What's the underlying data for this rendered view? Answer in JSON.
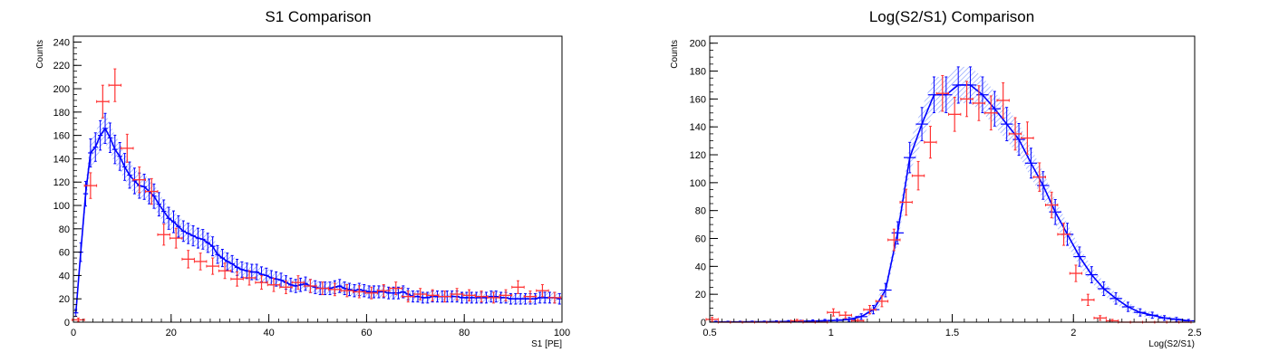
{
  "chart_data": [
    {
      "type": "line",
      "title": "S1 Comparison",
      "xlabel": "S1 [PE]",
      "ylabel": "Counts",
      "xlim": [
        0,
        100
      ],
      "ylim": [
        0,
        245
      ],
      "x_ticks": [
        0,
        20,
        40,
        60,
        80,
        100
      ],
      "y_ticks": [
        0,
        20,
        40,
        60,
        80,
        100,
        120,
        140,
        160,
        180,
        200,
        220,
        240
      ],
      "x_tick_labels": [
        "0",
        "20",
        "40",
        "60",
        "80",
        "100"
      ],
      "y_tick_labels": [
        "0",
        "20",
        "40",
        "60",
        "80",
        "100",
        "120",
        "140",
        "160",
        "180",
        "200",
        "220",
        "240"
      ],
      "grid": false,
      "legend": "none",
      "series": [
        {
          "role": "data-points",
          "color": "#ff3333",
          "x": [
            1,
            3.5,
            6,
            8.5,
            11,
            13.5,
            16,
            18.5,
            21,
            23.5,
            26,
            28.5,
            31,
            33.5,
            36,
            38.5,
            41,
            43.5,
            46,
            48.5,
            51,
            53.5,
            56,
            58.5,
            61,
            63.5,
            66,
            68.5,
            71,
            73.5,
            76,
            78.5,
            81,
            83.5,
            86,
            88.5,
            91,
            93.5,
            96,
            98.5
          ],
          "y": [
            2,
            117,
            189,
            203,
            149,
            122,
            112,
            75,
            72,
            54,
            52,
            48,
            44,
            37,
            38,
            34,
            32,
            30,
            34,
            31,
            29,
            28,
            27,
            26,
            25,
            27,
            29,
            22,
            24,
            23,
            22,
            24,
            23,
            22,
            21,
            23,
            30,
            22,
            27,
            21
          ],
          "yerr": [
            1.5,
            11,
            14,
            14,
            12,
            11,
            11,
            9,
            8.5,
            7.5,
            7.2,
            7,
            6.6,
            6.1,
            6.2,
            5.8,
            5.7,
            5.5,
            5.8,
            5.6,
            5.4,
            5.3,
            5.2,
            5.1,
            5,
            5.2,
            5.4,
            4.7,
            4.9,
            4.8,
            4.7,
            4.9,
            4.8,
            4.7,
            4.6,
            4.8,
            5.5,
            4.7,
            5.2,
            4.6
          ]
        },
        {
          "role": "model-points",
          "color": "#0000ff",
          "x": [
            0.5,
            1.5,
            2.5,
            3.5,
            4.5,
            5.5,
            6.5,
            7.5,
            8.5,
            9.5,
            10.5,
            11.5,
            12.5,
            13.5,
            14.5,
            15.5,
            16.5,
            17.5,
            18.5,
            19.5,
            20.5,
            21.5,
            22.5,
            23.5,
            24.5,
            25.5,
            26.5,
            27.5,
            28.5,
            29.5,
            30.5,
            31.5,
            32.5,
            33.5,
            34.5,
            35.5,
            36.5,
            37.5,
            38.5,
            39.5,
            40.5,
            41.5,
            42.5,
            43.5,
            44.5,
            45.5,
            46.5,
            47.5,
            48.5,
            49.5,
            50.5,
            51.5,
            52.5,
            53.5,
            54.5,
            55.5,
            56.5,
            57.5,
            58.5,
            59.5,
            60.5,
            61.5,
            62.5,
            63.5,
            64.5,
            65.5,
            66.5,
            67.5,
            68.5,
            69.5,
            70.5,
            71.5,
            72.5,
            73.5,
            74.5,
            75.5,
            76.5,
            77.5,
            78.5,
            79.5,
            80.5,
            81.5,
            82.5,
            83.5,
            84.5,
            85.5,
            86.5,
            87.5,
            88.5,
            89.5,
            90.5,
            91.5,
            92.5,
            93.5,
            94.5,
            95.5,
            96.5,
            97.5,
            98.5,
            99.5
          ],
          "y": [
            8,
            60,
            110,
            145,
            150,
            160,
            166,
            158,
            148,
            142,
            133,
            126,
            121,
            117,
            116,
            112,
            108,
            101,
            95,
            89,
            86,
            82,
            78,
            76,
            74,
            72,
            71,
            68,
            65,
            58,
            55,
            52,
            50,
            47,
            45,
            44,
            43,
            43,
            41,
            40,
            38,
            37,
            36,
            34,
            32,
            31,
            32,
            33,
            31,
            30,
            29,
            29,
            29,
            30,
            31,
            29,
            28,
            27,
            28,
            27,
            26,
            26,
            26,
            26,
            25,
            25,
            25,
            26,
            24,
            22,
            22,
            21,
            21,
            22,
            22,
            22,
            22,
            22,
            22,
            21,
            21,
            21,
            21,
            21,
            21,
            22,
            22,
            21,
            21,
            20,
            20,
            20,
            20,
            20,
            20,
            21,
            21,
            21,
            21,
            20
          ],
          "yerr": [
            3,
            8,
            10.5,
            12,
            12.2,
            12.6,
            12.9,
            12.6,
            12.2,
            11.9,
            11.5,
            11.2,
            11,
            10.8,
            10.8,
            10.6,
            10.4,
            10,
            9.7,
            9.4,
            9.3,
            9.1,
            8.8,
            8.7,
            8.6,
            8.5,
            8.4,
            8.2,
            8.1,
            7.6,
            7.4,
            7.2,
            7.1,
            6.9,
            6.7,
            6.6,
            6.6,
            6.6,
            6.4,
            6.3,
            6.2,
            6.1,
            6,
            5.8,
            5.7,
            5.6,
            5.7,
            5.7,
            5.6,
            5.5,
            5.4,
            5.4,
            5.4,
            5.5,
            5.6,
            5.4,
            5.3,
            5.2,
            5.3,
            5.2,
            5.1,
            5.1,
            5.1,
            5.1,
            5,
            5,
            5,
            5.1,
            4.9,
            4.7,
            4.7,
            4.6,
            4.6,
            4.7,
            4.7,
            4.7,
            4.7,
            4.7,
            4.7,
            4.6,
            4.6,
            4.6,
            4.6,
            4.6,
            4.6,
            4.7,
            4.7,
            4.6,
            4.6,
            4.5,
            4.5,
            4.5,
            4.5,
            4.5,
            4.5,
            4.6,
            4.6,
            4.6,
            4.6,
            4.5
          ]
        }
      ]
    },
    {
      "type": "line",
      "title": "Log(S2/S1) Comparison",
      "xlabel": "Log(S2/S1)",
      "ylabel": "Counts",
      "xlim": [
        0.5,
        2.5
      ],
      "ylim": [
        0,
        205
      ],
      "x_ticks": [
        0.5,
        1,
        1.5,
        2,
        2.5
      ],
      "y_ticks": [
        0,
        20,
        40,
        60,
        80,
        100,
        120,
        140,
        160,
        180,
        200
      ],
      "x_tick_labels": [
        "0.5",
        "1",
        "1.5",
        "2",
        "2.5"
      ],
      "y_tick_labels": [
        "0",
        "20",
        "40",
        "60",
        "80",
        "100",
        "120",
        "140",
        "160",
        "180",
        "200"
      ],
      "grid": false,
      "legend": "none",
      "series": [
        {
          "role": "data-points",
          "color": "#ff3333",
          "x": [
            0.51,
            0.56,
            0.61,
            0.66,
            0.71,
            0.76,
            0.81,
            0.86,
            0.91,
            0.96,
            1.01,
            1.06,
            1.11,
            1.16,
            1.21,
            1.26,
            1.31,
            1.36,
            1.41,
            1.46,
            1.51,
            1.56,
            1.61,
            1.66,
            1.71,
            1.76,
            1.81,
            1.86,
            1.91,
            1.96,
            2.01,
            2.06,
            2.11,
            2.16,
            2.21,
            2.26,
            2.31,
            2.36,
            2.41,
            2.46
          ],
          "y": [
            2,
            0,
            0,
            0,
            0,
            0,
            0,
            1,
            0,
            0,
            7,
            5,
            1,
            9,
            15,
            59,
            86,
            105,
            129,
            164,
            149,
            160,
            157,
            150,
            159,
            135,
            132,
            104,
            84,
            63,
            35,
            16,
            3,
            1,
            0,
            0,
            0,
            0,
            0,
            0
          ],
          "yerr": [
            1.5,
            0,
            0,
            0,
            0,
            0,
            0,
            1,
            0,
            0,
            2.6,
            2.2,
            1,
            3,
            3.9,
            7.7,
            9.3,
            10.2,
            11.4,
            12.8,
            12.2,
            12.6,
            12.5,
            12.2,
            12.6,
            11.6,
            11.5,
            10.2,
            9.2,
            7.9,
            5.9,
            4,
            1.7,
            1,
            0,
            0,
            0,
            0,
            0,
            0
          ]
        },
        {
          "role": "model-points",
          "color": "#0000ff",
          "x": [
            0.525,
            0.575,
            0.625,
            0.675,
            0.725,
            0.775,
            0.825,
            0.875,
            0.925,
            0.975,
            1.025,
            1.075,
            1.125,
            1.175,
            1.225,
            1.275,
            1.325,
            1.375,
            1.425,
            1.475,
            1.525,
            1.575,
            1.625,
            1.675,
            1.725,
            1.775,
            1.825,
            1.875,
            1.925,
            1.975,
            2.025,
            2.075,
            2.125,
            2.175,
            2.225,
            2.275,
            2.325,
            2.375,
            2.425,
            2.475
          ],
          "y": [
            0.2,
            0.2,
            0.2,
            0.3,
            0.3,
            0.4,
            0.5,
            0.6,
            0.8,
            1,
            1.3,
            2,
            4,
            9,
            23,
            64,
            118,
            142,
            163,
            163,
            170,
            170,
            163,
            153,
            142,
            131,
            114,
            98,
            79,
            63,
            47,
            34,
            24,
            17,
            11,
            7,
            5,
            3,
            2,
            1
          ],
          "yerr": [
            0.5,
            0.5,
            0.5,
            0.5,
            0.5,
            0.6,
            0.7,
            0.8,
            0.9,
            1,
            1.2,
            1.4,
            2,
            3,
            4.8,
            8,
            10.9,
            11.9,
            12.8,
            12.8,
            13,
            13,
            12.8,
            12.4,
            11.9,
            11.4,
            10.7,
            9.9,
            8.9,
            7.9,
            6.9,
            5.8,
            4.9,
            4.1,
            3.3,
            2.6,
            2.2,
            1.7,
            1.4,
            1
          ]
        }
      ]
    }
  ]
}
